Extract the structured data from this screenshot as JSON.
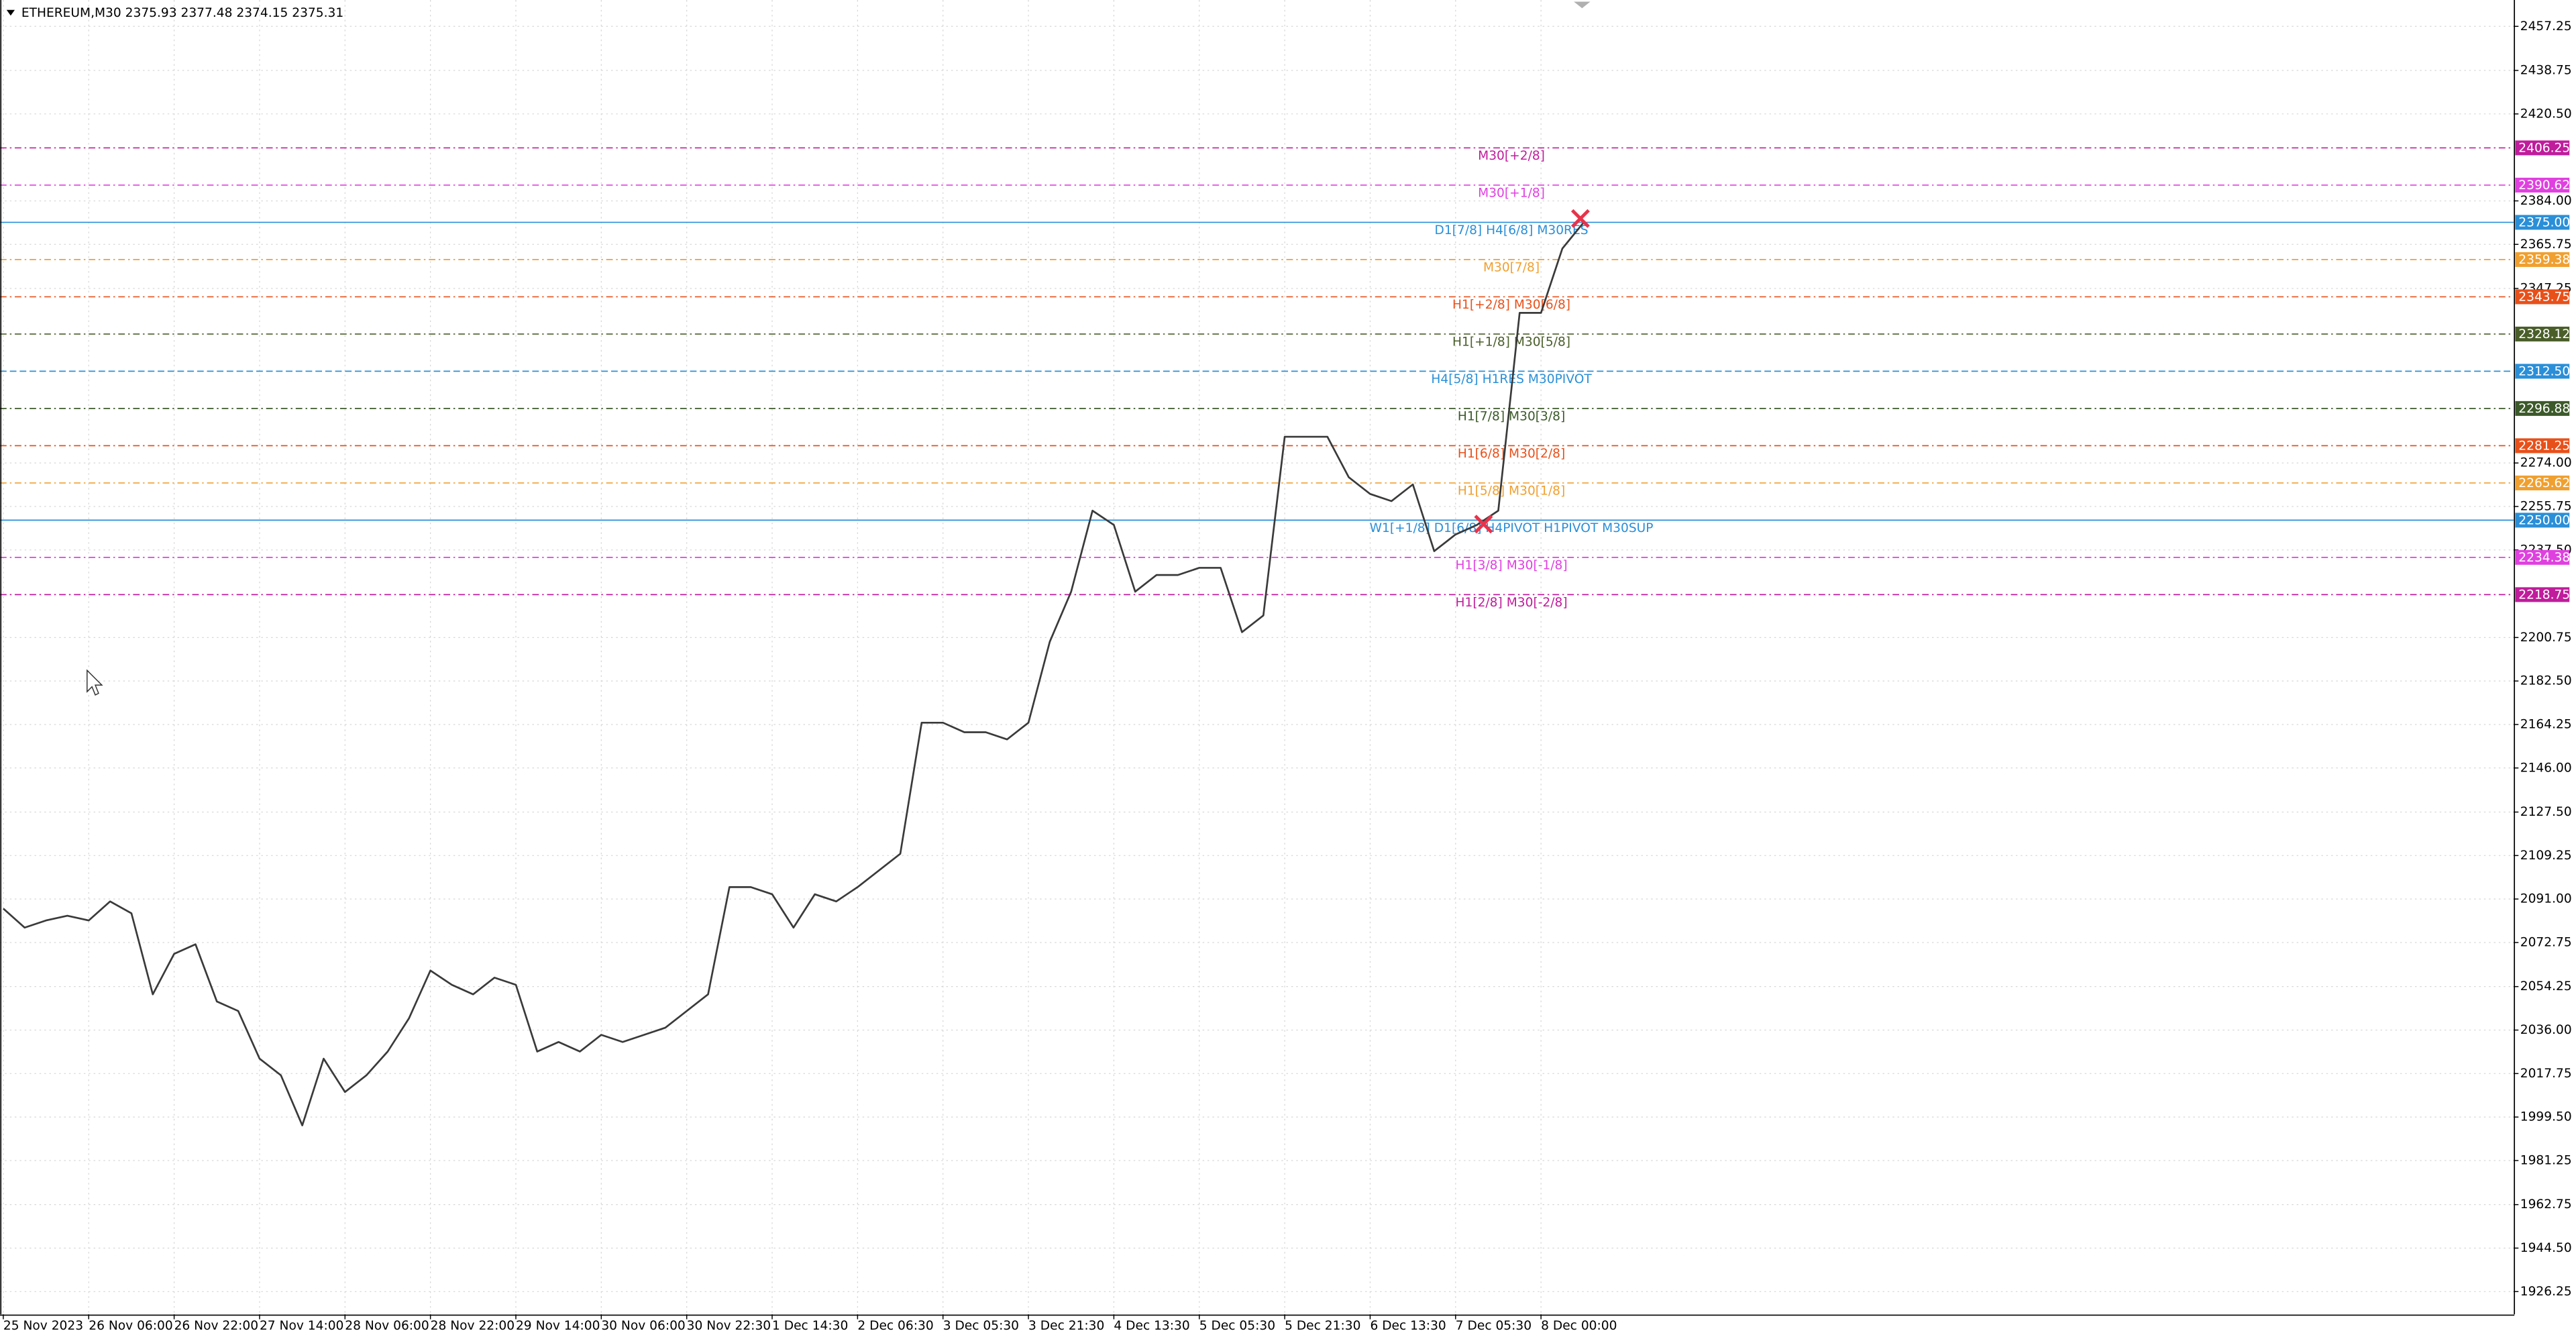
{
  "chart_data": {
    "type": "line",
    "title": "ETHEREUM,M30  2375.93 2377.48 2374.15 2375.31",
    "color": "#3a3a3a",
    "grid": true,
    "categories": [
      "25 Nov 2023",
      null,
      null,
      null,
      "26 Nov 06:00",
      null,
      null,
      null,
      "26 Nov 22:00",
      null,
      null,
      null,
      "27 Nov 14:00",
      null,
      null,
      null,
      "28 Nov 06:00",
      null,
      null,
      null,
      "28 Nov 22:00",
      null,
      null,
      null,
      "29 Nov 14:00",
      null,
      null,
      null,
      "30 Nov 06:00",
      null,
      null,
      null,
      "30 Nov 22:30",
      null,
      null,
      null,
      "1 Dec 14:30",
      null,
      null,
      null,
      "2 Dec 06:30",
      null,
      null,
      null,
      "3 Dec 05:30",
      null,
      null,
      null,
      "3 Dec 21:30",
      null,
      null,
      null,
      "4 Dec 13:30",
      null,
      null,
      null,
      "5 Dec 05:30",
      null,
      null,
      null,
      "5 Dec 21:30",
      null,
      null,
      null,
      "6 Dec 13:30",
      null,
      null,
      null,
      "7 Dec 05:30",
      null,
      null,
      null,
      "8 Dec 00:00",
      null,
      null
    ],
    "values": [
      2087,
      2079,
      2082,
      2084,
      2082,
      2090,
      2085,
      2051,
      2068,
      2072,
      2048,
      2044,
      2024,
      2017,
      1996,
      2024,
      2010,
      2017,
      2027,
      2041,
      2061,
      2055,
      2051,
      2058,
      2055,
      2027,
      2031,
      2027,
      2034,
      2031,
      2034,
      2037,
      2044,
      2051,
      2096,
      2096,
      2093,
      2079,
      2093,
      2090,
      2096,
      2103,
      2110,
      2165,
      2165,
      2161,
      2161,
      2158,
      2165,
      2199,
      2220,
      2254,
      2248,
      2220,
      2227,
      2227,
      2230,
      2230,
      2203,
      2210,
      2285,
      2285,
      2285,
      2268,
      2261,
      2258,
      2265,
      2237,
      2244,
      2248,
      2254,
      2337,
      2337,
      2364,
      2375
    ],
    "ylim": [
      1916.7,
      2468.3
    ],
    "yticks": [
      2457.25,
      2438.75,
      {
        "value": 2420.5,
        "label": "2420.50"
      },
      {
        "value": 2384,
        "label": "2384.00"
      },
      2365.75,
      2347.25,
      {
        "value": 2274,
        "label": "2274.00"
      },
      2255.75,
      {
        "value": 2237.5,
        "label": "2237.50"
      },
      2200.75,
      {
        "value": 2182.5,
        "label": "2182.50"
      },
      2164.25,
      {
        "value": 2146,
        "label": "2146.00"
      },
      {
        "value": 2127.5,
        "label": "2127.50"
      },
      2109.25,
      {
        "value": 2091,
        "label": "2091.00"
      },
      2072.75,
      2054.25,
      {
        "value": 2036,
        "label": "2036.00"
      },
      2017.75,
      {
        "value": 1999.5,
        "label": "1999.50"
      },
      1981.25,
      1962.75,
      {
        "value": 1944.5,
        "label": "1944.50"
      },
      1926.25
    ],
    "levels": [
      {
        "value": 2406.25,
        "value_label": "2406.25",
        "text": "M30[+2/8]",
        "color": "#c01c9c",
        "style": "dashdot"
      },
      {
        "value": 2390.62,
        "value_label": "2390.62",
        "text": "M30[+1/8]",
        "color": "#e040e0",
        "style": "dashdot"
      },
      {
        "value": 2375,
        "value_label": "2375.00",
        "text": "D1[7/8] H4[6/8] M30RES",
        "color": "#2a8fd8",
        "style": "solid"
      },
      {
        "value": 2359.38,
        "value_label": "2359.38",
        "text": "M30[7/8]",
        "color": "#f0a030",
        "style": "dashdot"
      },
      {
        "value": 2343.75,
        "value_label": "2343.75",
        "text": "H1[+2/8] M30[6/8]",
        "color": "#e8501a",
        "style": "dashdot"
      },
      {
        "value": 2328.12,
        "value_label": "2328.12",
        "text": "H1[+1/8] M30[5/8]",
        "color": "#4a5e2a",
        "style": "dashdot"
      },
      {
        "value": 2312.5,
        "value_label": "2312.50",
        "text": "H4[5/8] H1RES M30PIVOT",
        "color": "#2a8fd8",
        "style": "dashed"
      },
      {
        "value": 2296.88,
        "value_label": "2296.88",
        "text": "H1[7/8] M30[3/8]",
        "color": "#3c5a2a",
        "style": "dashdot"
      },
      {
        "value": 2281.25,
        "value_label": "2281.25",
        "text": "H1[6/8] M30[2/8]",
        "color": "#e8501a",
        "style": "dashdot"
      },
      {
        "value": 2265.62,
        "value_label": "2265.62",
        "text": "H1[5/8] M30[1/8]",
        "color": "#f0a030",
        "style": "dashdot"
      },
      {
        "value": 2250,
        "value_label": "2250.00",
        "text": "W1[+1/8] D1[6/8] H4PIVOT H1PIVOT M30SUP",
        "color": "#2a8fd8",
        "style": "solid"
      },
      {
        "value": 2234.38,
        "value_label": "2234.38",
        "text": "H1[3/8] M30[-1/8]",
        "color": "#e040e0",
        "style": "dashdot"
      },
      {
        "value": 2218.75,
        "value_label": "2218.75",
        "text": "H1[2/8] M30[-2/8]",
        "color": "#c01c9c",
        "style": "dashdot"
      }
    ]
  }
}
